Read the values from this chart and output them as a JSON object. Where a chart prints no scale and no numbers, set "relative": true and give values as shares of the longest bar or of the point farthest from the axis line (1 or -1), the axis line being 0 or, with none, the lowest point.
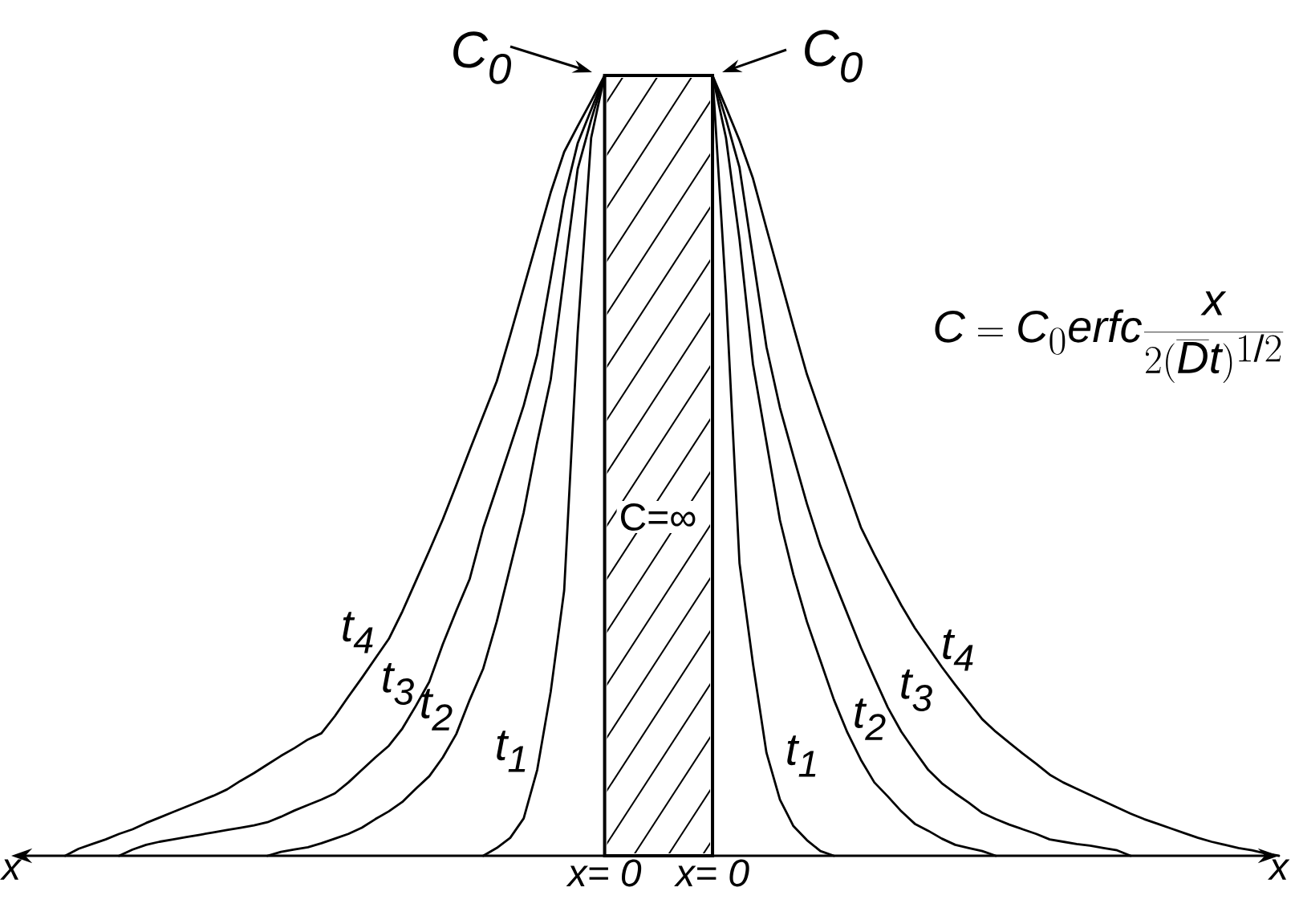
{
  "chart_data": {
    "type": "line",
    "relative": true,
    "categories": [
      "x",
      null,
      null,
      null,
      null,
      null,
      null,
      null,
      null,
      null,
      null,
      null,
      null,
      null,
      null,
      null,
      null,
      null,
      null,
      null,
      null,
      null,
      null,
      null,
      null,
      null,
      null,
      null,
      null,
      null,
      null,
      null,
      null,
      null,
      null,
      null,
      null,
      null,
      null,
      null,
      null,
      null,
      null,
      null,
      "x= 0",
      null,
      null,
      null,
      null,
      null,
      null,
      null,
      "x= 0",
      null,
      null,
      null,
      null,
      null,
      null,
      null,
      null,
      null,
      null,
      null,
      null,
      null,
      null,
      null,
      null,
      null,
      null,
      null,
      null,
      null,
      null,
      null,
      null,
      null,
      null,
      null,
      null,
      null,
      null,
      null,
      null,
      null,
      null,
      null,
      null,
      null,
      null,
      null,
      null,
      null,
      "x"
    ],
    "series": [
      {
        "name": "t$_{1}$",
        "color": "#000000",
        "values": [
          null,
          null,
          null,
          null,
          null,
          null,
          null,
          null,
          null,
          null,
          null,
          null,
          null,
          null,
          null,
          null,
          null,
          null,
          null,
          null,
          null,
          null,
          null,
          null,
          null,
          null,
          null,
          null,
          null,
          null,
          null,
          null,
          null,
          null,
          null,
          0,
          0.01,
          0.023,
          0.048,
          0.11,
          0.21,
          0.34,
          0.67,
          0.92,
          1,
          null,
          null,
          null,
          null,
          null,
          null,
          null,
          1,
          0.72,
          0.375,
          0.246,
          0.132,
          0.072,
          0.038,
          0.02,
          0.006,
          0,
          null,
          null,
          null,
          null,
          null,
          null,
          null,
          null,
          null,
          null,
          null,
          null,
          null,
          null,
          null,
          null,
          null,
          null,
          null,
          null,
          null,
          null,
          null,
          null,
          null,
          null,
          null,
          null,
          null,
          null,
          null,
          null,
          null
        ]
      },
      {
        "name": "t$_{2}$",
        "color": "#000000",
        "values": [
          null,
          null,
          null,
          null,
          null,
          null,
          null,
          null,
          null,
          null,
          null,
          null,
          null,
          null,
          null,
          null,
          null,
          null,
          null,
          0,
          0.005,
          0.008,
          0.011,
          0.016,
          0.022,
          0.028,
          0.036,
          0.047,
          0.057,
          0.069,
          0.086,
          0.102,
          0.126,
          0.156,
          0.2,
          0.24,
          0.3,
          0.37,
          0.44,
          0.53,
          0.61,
          0.745,
          0.88,
          0.943,
          1,
          null,
          null,
          null,
          null,
          null,
          null,
          null,
          1,
          0.92,
          0.79,
          0.63,
          0.53,
          0.43,
          0.36,
          0.3,
          0.25,
          0.2,
          0.158,
          0.123,
          0.094,
          0.076,
          0.057,
          0.041,
          0.032,
          0.022,
          0.014,
          0.01,
          0.006,
          0,
          null,
          null,
          null,
          null,
          null,
          null,
          null,
          null,
          null,
          null,
          null,
          null,
          null,
          null,
          null,
          null,
          null,
          null,
          null,
          null,
          null
        ]
      },
      {
        "name": "t$_{3}$",
        "color": "#000000",
        "values": [
          null,
          null,
          null,
          null,
          null,
          null,
          null,
          null,
          0,
          0.008,
          0.014,
          0.018,
          0.021,
          0.024,
          0.027,
          0.03,
          0.033,
          0.036,
          0.039,
          0.043,
          0.05,
          0.058,
          0.065,
          0.072,
          0.08,
          0.094,
          0.11,
          0.126,
          0.141,
          0.163,
          0.192,
          0.223,
          0.271,
          0.314,
          0.355,
          0.42,
          0.472,
          0.524,
          0.577,
          0.642,
          0.74,
          0.842,
          0.913,
          0.956,
          1,
          null,
          null,
          null,
          null,
          null,
          null,
          null,
          1,
          0.944,
          0.882,
          0.767,
          0.652,
          0.574,
          0.512,
          0.451,
          0.397,
          0.353,
          0.31,
          0.267,
          0.228,
          0.19,
          0.159,
          0.134,
          0.11,
          0.093,
          0.08,
          0.068,
          0.055,
          0.047,
          0.04,
          0.034,
          0.028,
          0.021,
          0.018,
          0.015,
          0.013,
          0.01,
          0.007,
          0,
          null,
          null,
          null,
          null,
          null,
          null,
          null,
          null,
          null,
          null,
          null
        ]
      },
      {
        "name": "t$_{4}$",
        "color": "#000000",
        "values": [
          null,
          null,
          null,
          null,
          0,
          0.009,
          0.015,
          0.021,
          0.028,
          0.034,
          0.042,
          0.049,
          0.056,
          0.063,
          0.07,
          0.077,
          0.085,
          0.096,
          0.106,
          0.117,
          0.128,
          0.138,
          0.149,
          0.157,
          0.179,
          0.204,
          0.228,
          0.253,
          0.278,
          0.313,
          0.352,
          0.391,
          0.431,
          0.475,
          0.52,
          0.564,
          0.608,
          0.667,
          0.728,
          0.789,
          0.85,
          0.902,
          0.935,
          0.967,
          1,
          null,
          null,
          null,
          null,
          null,
          null,
          null,
          1,
          0.959,
          0.917,
          0.868,
          0.804,
          0.741,
          0.678,
          0.617,
          0.567,
          0.519,
          0.47,
          0.421,
          0.386,
          0.353,
          0.321,
          0.292,
          0.267,
          0.242,
          0.219,
          0.197,
          0.175,
          0.159,
          0.145,
          0.131,
          0.118,
          0.104,
          0.094,
          0.086,
          0.078,
          0.07,
          0.062,
          0.054,
          0.047,
          0.041,
          0.035,
          0.029,
          0.023,
          0.018,
          0.014,
          0.01,
          0.007,
          0.003,
          0
        ]
      },
      {
        "name": "C=∞",
        "type": "area",
        "color": "#000000",
        "values": [
          null,
          null,
          null,
          null,
          null,
          null,
          null,
          null,
          null,
          null,
          null,
          null,
          null,
          null,
          null,
          null,
          null,
          null,
          null,
          null,
          null,
          null,
          null,
          null,
          null,
          null,
          null,
          null,
          null,
          null,
          null,
          null,
          null,
          null,
          null,
          null,
          null,
          null,
          null,
          null,
          null,
          null,
          null,
          null,
          1,
          1,
          1,
          1,
          1,
          1,
          1,
          1,
          1,
          null,
          null,
          null,
          null,
          null,
          null,
          null,
          null,
          null,
          null,
          null,
          null,
          null,
          null,
          null,
          null,
          null,
          null,
          null,
          null,
          null,
          null,
          null,
          null,
          null,
          null,
          null,
          null,
          null,
          null,
          null,
          null,
          null,
          null,
          null,
          null,
          null,
          null,
          null,
          null,
          null,
          null
        ]
      }
    ],
    "annotations": [
      "C$_{0}$",
      "C$_{0}$",
      "C= C_{0}erfc\\frac{x}{2(\\overline{D}t)^{1/2}}"
    ]
  }
}
